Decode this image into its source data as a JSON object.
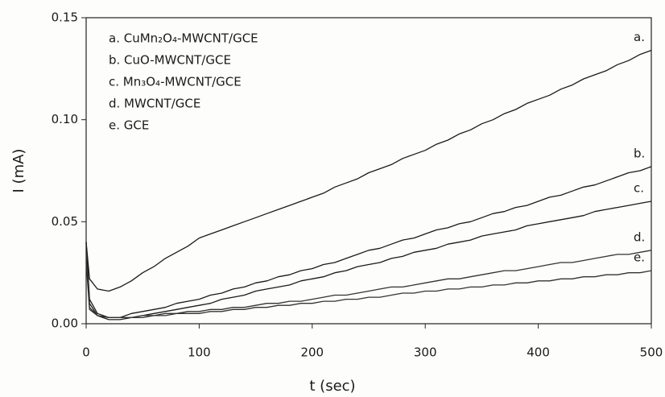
{
  "chart_data": {
    "type": "line",
    "xlabel": "t (sec)",
    "ylabel": "I (mA)",
    "x": [
      0,
      3,
      10,
      20,
      30,
      40,
      50,
      60,
      70,
      80,
      90,
      100,
      110,
      120,
      130,
      140,
      150,
      160,
      170,
      180,
      190,
      200,
      210,
      220,
      230,
      240,
      250,
      260,
      270,
      280,
      290,
      300,
      310,
      320,
      330,
      340,
      350,
      360,
      370,
      380,
      390,
      400,
      410,
      420,
      430,
      440,
      450,
      460,
      470,
      480,
      490,
      500
    ],
    "xlim": [
      0,
      500
    ],
    "xticks": [
      0,
      100,
      200,
      300,
      400,
      500
    ],
    "ylim": [
      0,
      0.15
    ],
    "yticks": [
      {
        "value": 0,
        "label": "0.00"
      },
      {
        "value": 0.05,
        "label": "0.05"
      },
      {
        "value": 0.1,
        "label": "0.10"
      },
      {
        "value": 0.15,
        "label": "0.15"
      }
    ],
    "series": [
      {
        "name": "a. CuMn₂O₄-MWCNT/GCE",
        "label": "a.",
        "color": "#1a1a1a",
        "values": [
          0.04,
          0.022,
          0.017,
          0.016,
          0.018,
          0.021,
          0.025,
          0.028,
          0.032,
          0.035,
          0.038,
          0.042,
          0.044,
          0.046,
          0.048,
          0.05,
          0.052,
          0.054,
          0.056,
          0.058,
          0.06,
          0.062,
          0.064,
          0.067,
          0.069,
          0.071,
          0.074,
          0.076,
          0.078,
          0.081,
          0.083,
          0.085,
          0.088,
          0.09,
          0.093,
          0.095,
          0.098,
          0.1,
          0.103,
          0.105,
          0.108,
          0.11,
          0.112,
          0.115,
          0.117,
          0.12,
          0.122,
          0.124,
          0.127,
          0.129,
          0.132,
          0.134
        ]
      },
      {
        "name": "b. CuO-MWCNT/GCE",
        "label": "b.",
        "color": "#1a1a1a",
        "values": [
          0.04,
          0.012,
          0.005,
          0.003,
          0.003,
          0.005,
          0.006,
          0.007,
          0.008,
          0.01,
          0.011,
          0.012,
          0.014,
          0.015,
          0.017,
          0.018,
          0.02,
          0.021,
          0.023,
          0.024,
          0.026,
          0.027,
          0.029,
          0.03,
          0.032,
          0.034,
          0.036,
          0.037,
          0.039,
          0.041,
          0.042,
          0.044,
          0.046,
          0.047,
          0.049,
          0.05,
          0.052,
          0.054,
          0.055,
          0.057,
          0.058,
          0.06,
          0.062,
          0.063,
          0.065,
          0.067,
          0.068,
          0.07,
          0.072,
          0.074,
          0.075,
          0.077
        ]
      },
      {
        "name": "c. Mn₃O₄-MWCNT/GCE",
        "label": "c.",
        "color": "#1a1a1a",
        "values": [
          0.04,
          0.01,
          0.004,
          0.002,
          0.002,
          0.003,
          0.004,
          0.005,
          0.006,
          0.007,
          0.008,
          0.009,
          0.01,
          0.012,
          0.013,
          0.014,
          0.016,
          0.017,
          0.018,
          0.019,
          0.021,
          0.022,
          0.023,
          0.025,
          0.026,
          0.028,
          0.029,
          0.03,
          0.032,
          0.033,
          0.035,
          0.036,
          0.037,
          0.039,
          0.04,
          0.041,
          0.043,
          0.044,
          0.045,
          0.046,
          0.048,
          0.049,
          0.05,
          0.051,
          0.052,
          0.053,
          0.055,
          0.056,
          0.057,
          0.058,
          0.059,
          0.06
        ]
      },
      {
        "name": "d. MWCNT/GCE",
        "label": "d.",
        "color": "#333333",
        "values": [
          0.035,
          0.008,
          0.004,
          0.003,
          0.003,
          0.003,
          0.004,
          0.004,
          0.005,
          0.005,
          0.006,
          0.006,
          0.007,
          0.007,
          0.008,
          0.008,
          0.009,
          0.01,
          0.01,
          0.011,
          0.011,
          0.012,
          0.013,
          0.014,
          0.014,
          0.015,
          0.016,
          0.017,
          0.018,
          0.018,
          0.019,
          0.02,
          0.021,
          0.022,
          0.022,
          0.023,
          0.024,
          0.025,
          0.026,
          0.026,
          0.027,
          0.028,
          0.029,
          0.03,
          0.03,
          0.031,
          0.032,
          0.033,
          0.034,
          0.034,
          0.035,
          0.036
        ]
      },
      {
        "name": "e. GCE",
        "label": "e.",
        "color": "#333333",
        "values": [
          0.03,
          0.007,
          0.004,
          0.003,
          0.003,
          0.003,
          0.003,
          0.004,
          0.004,
          0.005,
          0.005,
          0.005,
          0.006,
          0.006,
          0.007,
          0.007,
          0.008,
          0.008,
          0.009,
          0.009,
          0.01,
          0.01,
          0.011,
          0.011,
          0.012,
          0.012,
          0.013,
          0.013,
          0.014,
          0.015,
          0.015,
          0.016,
          0.016,
          0.017,
          0.017,
          0.018,
          0.018,
          0.019,
          0.019,
          0.02,
          0.02,
          0.021,
          0.021,
          0.022,
          0.022,
          0.023,
          0.023,
          0.024,
          0.024,
          0.025,
          0.025,
          0.026
        ]
      }
    ]
  }
}
